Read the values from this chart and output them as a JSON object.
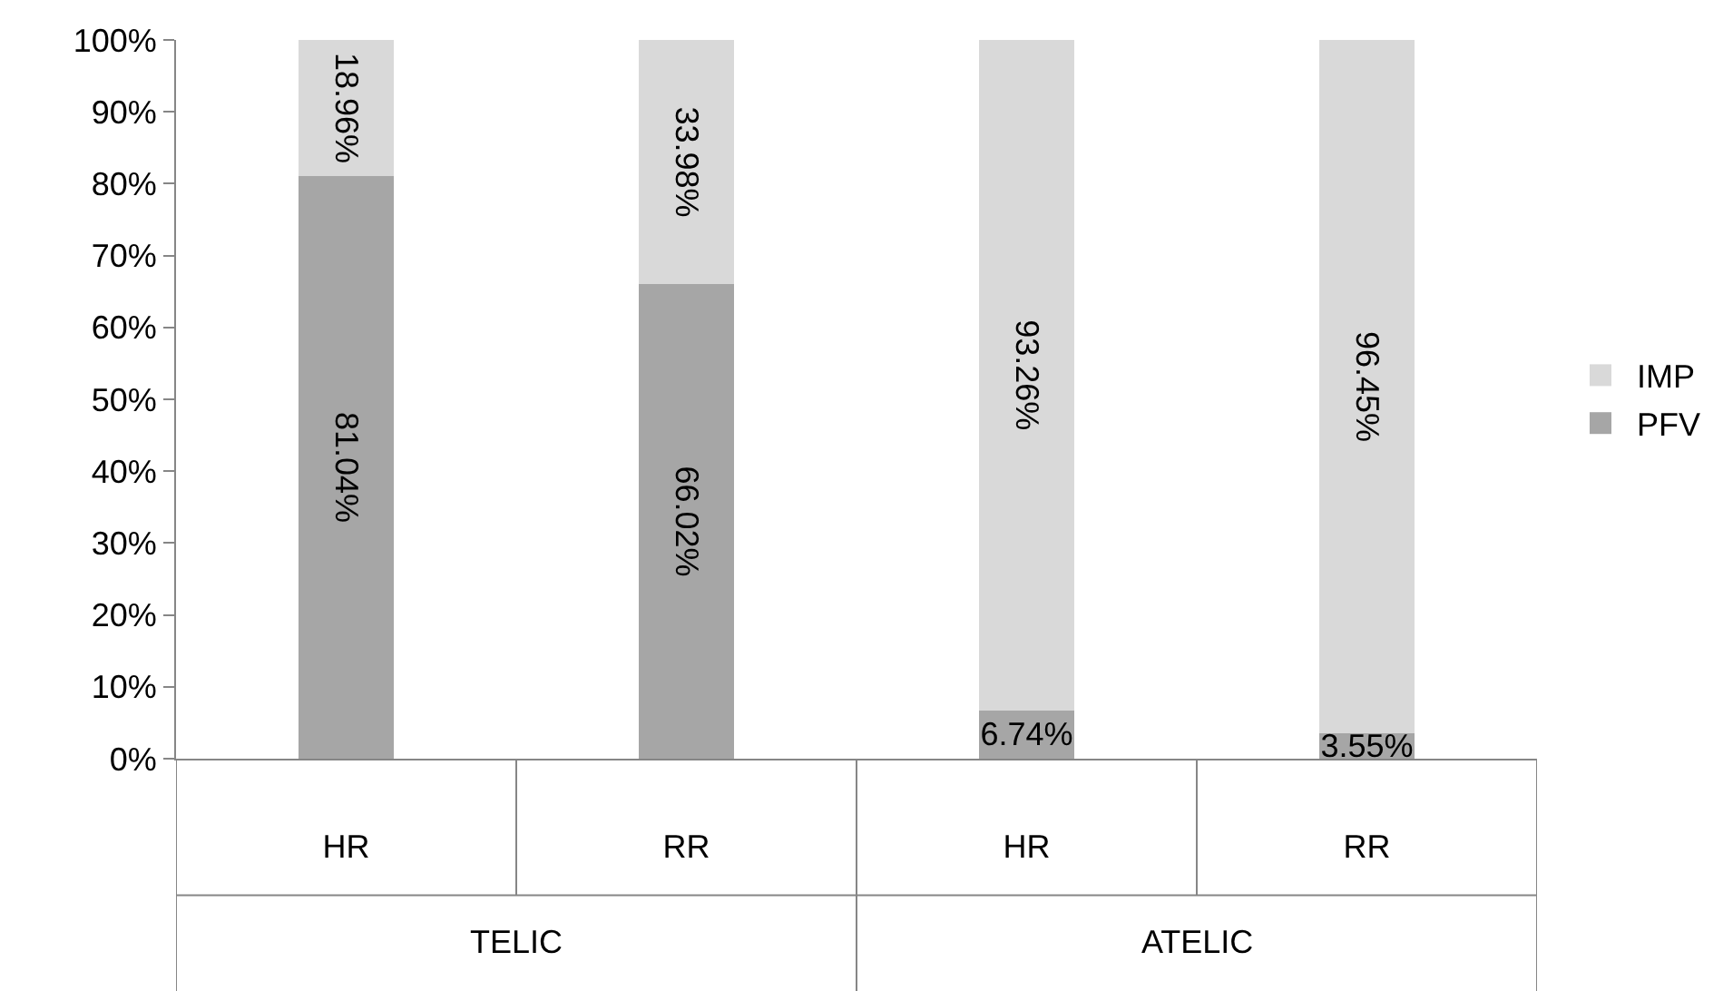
{
  "chart_data": {
    "type": "bar",
    "stacked": true,
    "categories": [
      "HR",
      "RR",
      "HR",
      "RR"
    ],
    "series": [
      {
        "name": "PFV",
        "color": "#a6a6a6",
        "values": [
          81.04,
          66.02,
          6.74,
          3.55
        ],
        "value_labels": [
          "81.04%",
          "66.02%",
          "6.74%",
          "3.55%"
        ]
      },
      {
        "name": "IMP",
        "color": "#d9d9d9",
        "values": [
          18.96,
          33.98,
          93.26,
          96.45
        ],
        "value_labels": [
          "18.96%",
          "33.98%",
          "93.26%",
          "96.45%"
        ]
      }
    ],
    "ylim": [
      0,
      100
    ],
    "yticks": [
      {
        "value": 0,
        "label": "0%"
      },
      {
        "value": 10,
        "label": "10%"
      },
      {
        "value": 20,
        "label": "20%"
      },
      {
        "value": 30,
        "label": "30%"
      },
      {
        "value": 40,
        "label": "40%"
      },
      {
        "value": 50,
        "label": "50%"
      },
      {
        "value": 60,
        "label": "60%"
      },
      {
        "value": 70,
        "label": "70%"
      },
      {
        "value": 80,
        "label": "80%"
      },
      {
        "value": 90,
        "label": "90%"
      },
      {
        "value": 100,
        "label": "100%"
      }
    ],
    "annotations": [
      "TELIC",
      "ATELIC"
    ],
    "legend": "right",
    "grid": false
  }
}
